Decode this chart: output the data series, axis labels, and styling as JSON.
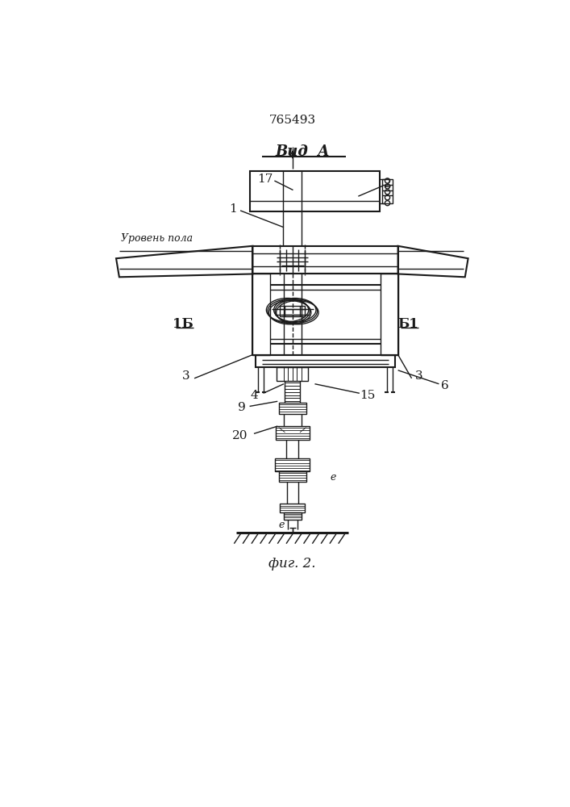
{
  "title": "765493",
  "fig_label": "фиг. 2.",
  "view_label": "Вид  A",
  "floor_label": "Уровень пола",
  "bg_color": "#ffffff",
  "line_color": "#1a1a1a"
}
